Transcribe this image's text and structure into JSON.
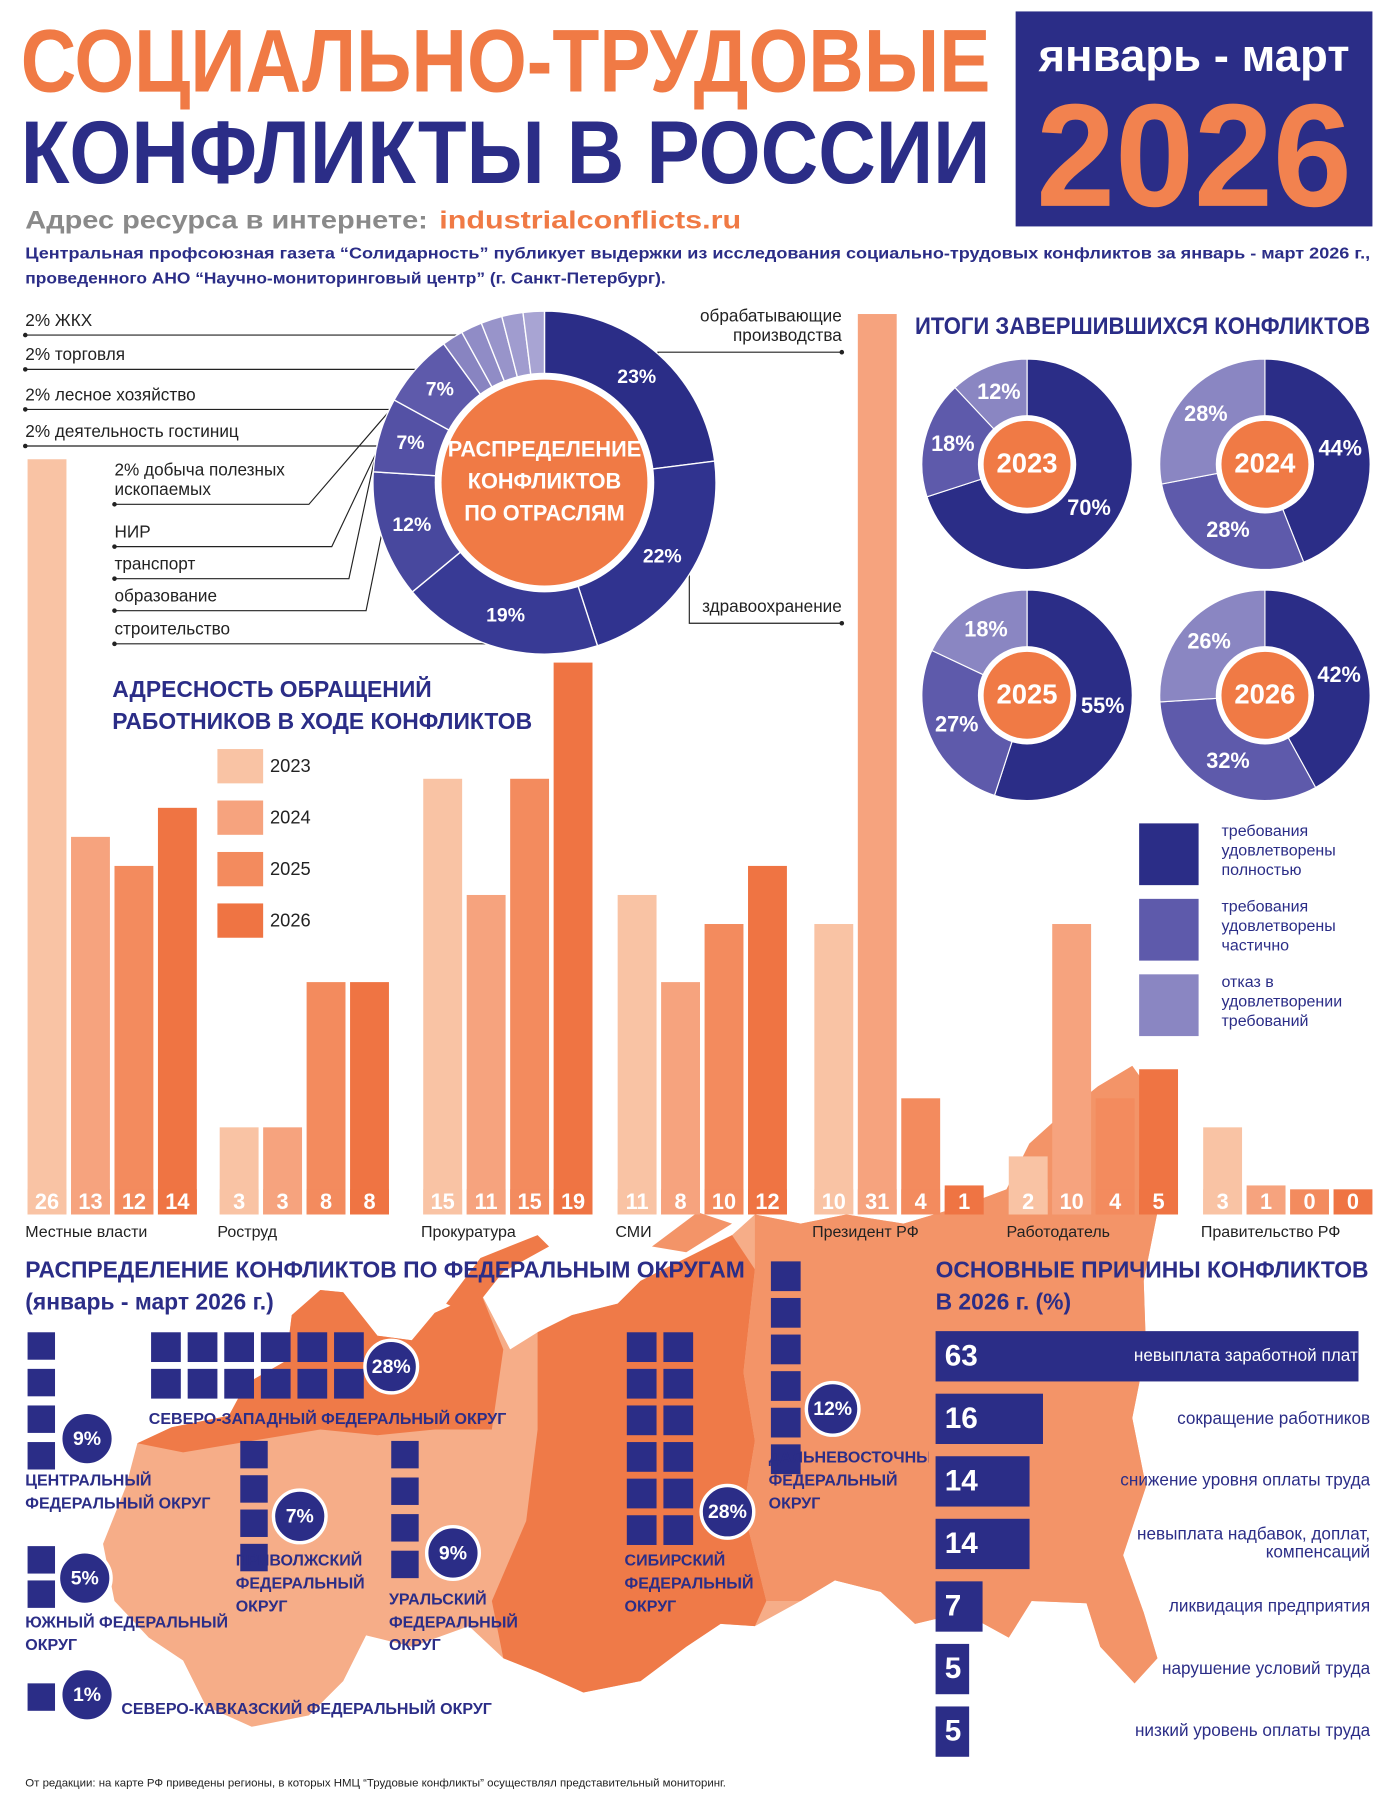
{
  "header": {
    "title_line1": "СОЦИАЛЬНО-ТРУДОВЫЕ",
    "title_line2": "КОНФЛИКТЫ В РОССИИ",
    "period": "январь - март",
    "year": "2026",
    "site_label": "Адрес ресурса в интернете:",
    "site_url": "industrialconflicts.ru",
    "intro": [
      "Центральная профсоюзная газета “Солидарность” публикует выдержки из исследования социально-трудовых конфликтов за январь - март 2026 г.,",
      "проведенного АНО “Научно-мониторинговый центр” (г. Санкт-Петербург)."
    ]
  },
  "chart_data": [
    {
      "type": "donut",
      "title": [
        "РАСПРЕДЕЛЕНИЕ",
        "КОНФЛИКТОВ",
        "ПО ОТРАСЛЯМ"
      ],
      "categories": [
        "обрабатывающие производства",
        "здравоохранение",
        "строительство",
        "образование",
        "транспорт",
        "НИР",
        "добыча полезных ископаемых",
        "деятельность гостиниц",
        "лесное хозяйство",
        "торговля",
        "ЖКХ"
      ],
      "values": [
        23,
        22,
        19,
        12,
        7,
        7,
        2,
        2,
        2,
        2,
        2
      ],
      "value_labels": [
        "23%",
        "22%",
        "19%",
        "12%",
        "7%",
        "7%",
        "2%",
        "2%",
        "2%",
        "2%",
        "2%"
      ],
      "colors": [
        "#2b2d87",
        "#30338f",
        "#383a95",
        "#48489e",
        "#5451a5",
        "#5e5aab",
        "#8884c1",
        "#908cc6",
        "#9894ca",
        "#a09ccf",
        "#a8a4d3"
      ]
    },
    {
      "type": "grouped-bar",
      "title": [
        "АДРЕСНОСТЬ ОБРАЩЕНИЙ",
        "РАБОТНИКОВ В ХОДЕ КОНФЛИКТОВ"
      ],
      "categories": [
        "Местные власти",
        "Роструд",
        "Прокуратура",
        "СМИ",
        "Президент РФ",
        "Работодатель",
        "Правительство РФ"
      ],
      "series": [
        {
          "name": "2023",
          "color": "#f9c3a4",
          "values": [
            26,
            3,
            15,
            11,
            10,
            2,
            3
          ]
        },
        {
          "name": "2024",
          "color": "#f6a37e",
          "values": [
            13,
            3,
            11,
            8,
            31,
            10,
            1
          ]
        },
        {
          "name": "2025",
          "color": "#f38b5e",
          "values": [
            12,
            8,
            15,
            10,
            4,
            4,
            0
          ]
        },
        {
          "name": "2026",
          "color": "#ef7443",
          "values": [
            14,
            8,
            19,
            12,
            1,
            5,
            0
          ]
        }
      ]
    },
    {
      "type": "pie-grid",
      "title": "ИТОГИ ЗАВЕРШИВШИХСЯ КОНФЛИКТОВ",
      "categories": [
        "требования удовлетворены полностью",
        "требования удовлетворены частично",
        "отказ в удовлетворении требований"
      ],
      "colors": [
        "#2b2d87",
        "#5e5aab",
        "#8a86c2"
      ],
      "series": [
        {
          "name": "2023",
          "values": [
            70,
            18,
            12
          ],
          "value_labels": [
            "70%",
            "18%",
            "12%"
          ]
        },
        {
          "name": "2024",
          "values": [
            44,
            28,
            28
          ],
          "value_labels": [
            "44%",
            "28%",
            "28%"
          ]
        },
        {
          "name": "2025",
          "values": [
            55,
            27,
            18
          ],
          "value_labels": [
            "55%",
            "27%",
            "18%"
          ]
        },
        {
          "name": "2026",
          "values": [
            42,
            32,
            26
          ],
          "value_labels": [
            "42%",
            "32%",
            "26%"
          ]
        }
      ]
    },
    {
      "type": "pictogram-map",
      "title": "РАСПРЕДЕЛЕНИЕ КОНФЛИКТОВ ПО ФЕДЕРАЛЬНЫМ ОКРУГАМ",
      "subtitle": "(январь - март 2026 г.)",
      "categories": [
        "ЦЕНТРАЛЬНЫЙ ФЕДЕРАЛЬНЫЙ ОКРУГ",
        "СЕВЕРО-ЗАПАДНЫЙ ФЕДЕРАЛЬНЫЙ ОКРУГ",
        "ПРИВОЛЖСКИЙ ФЕДЕРАЛЬНЫЙ ОКРУГ",
        "УРАЛЬСКИЙ ФЕДЕРАЛЬНЫЙ ОКРУГ",
        "ЮЖНЫЙ ФЕДЕРАЛЬНЫЙ ОКРУГ",
        "СЕВЕРО-КАВКАЗСКИЙ ФЕДЕРАЛЬНЫЙ ОКРУГ",
        "СИБИРСКИЙ ФЕДЕРАЛЬНЫЙ ОКРУГ",
        "ДАЛЬНЕВОСТОЧНЫЙ ФЕДЕРАЛЬНЫЙ ОКРУГ"
      ],
      "values": [
        9,
        28,
        7,
        9,
        5,
        1,
        28,
        12
      ],
      "value_labels": [
        "9%",
        "28%",
        "7%",
        "9%",
        "5%",
        "1%",
        "28%",
        "12%"
      ],
      "color": "#2b2d87"
    },
    {
      "type": "hbar",
      "title": [
        "ОСНОВНЫЕ ПРИЧИНЫ КОНФЛИКТОВ",
        "В 2026 г. (%)"
      ],
      "categories": [
        "невыплата заработной платы",
        "сокращение работников",
        "снижение уровня оплаты труда",
        "невыплата надбавок, доплат, компенсаций",
        "ликвидация предприятия",
        "нарушение условий труда",
        "низкий уровень  оплаты труда"
      ],
      "values": [
        63,
        16,
        14,
        14,
        7,
        5,
        5
      ],
      "color": "#2b2d87"
    }
  ],
  "footnote": "От редакции: на карте РФ приведены регионы, в которых НМЦ “Трудовые конфликты” осуществлял представительный мониторинг."
}
